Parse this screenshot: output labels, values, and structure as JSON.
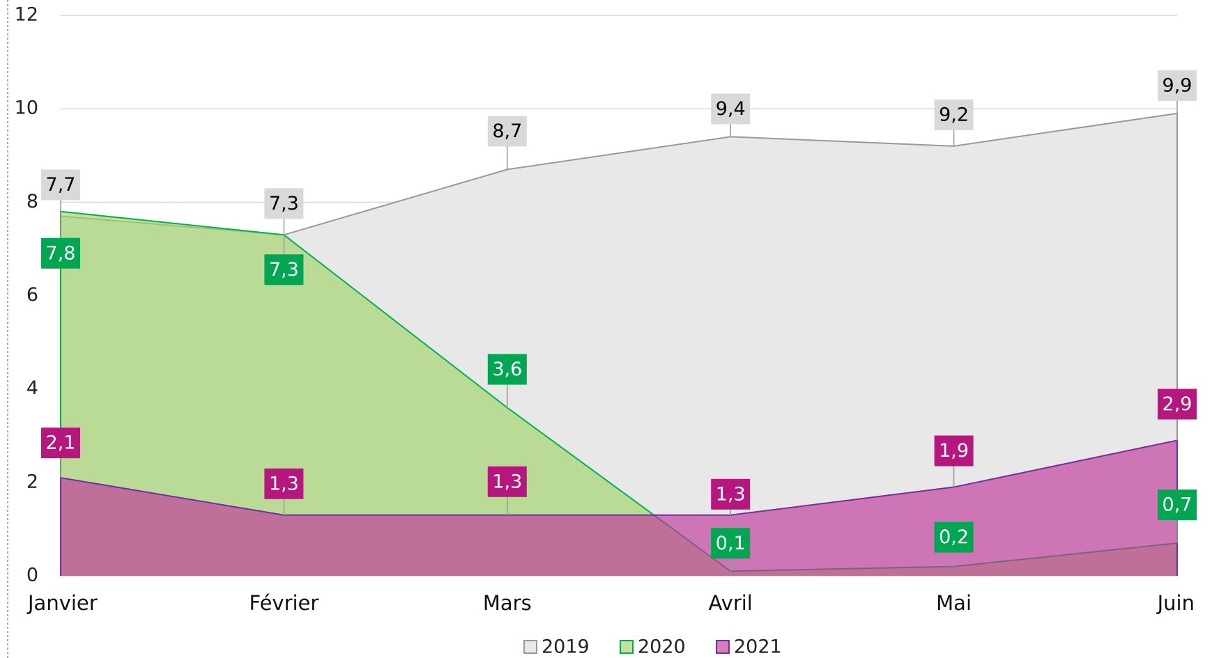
{
  "chart_data": {
    "type": "area",
    "categories": [
      "Janvier",
      "Février",
      "Mars",
      "Avril",
      "Mai",
      "Juin"
    ],
    "series": [
      {
        "name": "2019",
        "color": "#999999",
        "fill": "#e8e8e8",
        "label_color": "#d9d9d9",
        "label_text_color": "#000000",
        "values": [
          7.7,
          7.3,
          8.7,
          9.4,
          9.2,
          9.9
        ],
        "value_labels": [
          "7,7",
          "7,3",
          "8,7",
          "9,4",
          "9,2",
          "9,9"
        ]
      },
      {
        "name": "2020",
        "color": "#00b050",
        "fill": "#9fd46a",
        "label_color": "#00a651",
        "label_text_color": "#ffffff",
        "values": [
          7.8,
          7.3,
          3.6,
          0.1,
          0.2,
          0.7
        ],
        "value_labels": [
          "7,8",
          "7,3",
          "3,6",
          "0,1",
          "0,2",
          "0,7"
        ]
      },
      {
        "name": "2021",
        "color": "#7030a0",
        "fill": "#c0389a",
        "label_color": "#b5177e",
        "label_text_color": "#ffffff",
        "values": [
          2.1,
          1.3,
          1.3,
          1.3,
          1.9,
          2.9
        ],
        "value_labels": [
          "2,1",
          "1,3",
          "1,3",
          "1,3",
          "1,9",
          "2,9"
        ]
      }
    ],
    "ylim": [
      0,
      12
    ],
    "yticks": [
      0,
      2,
      4,
      6,
      8,
      10,
      12
    ],
    "grid": true,
    "legend": "bottom"
  }
}
